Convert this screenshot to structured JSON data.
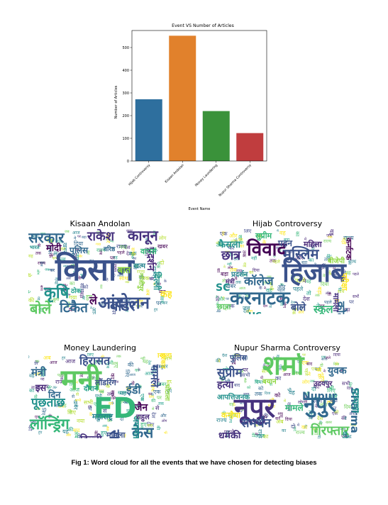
{
  "chart_data": {
    "type": "bar",
    "title": "Event VS Number of Articles",
    "xlabel": "Event Name",
    "ylabel": "Number of Articles",
    "categories": [
      "Hijab Controversy",
      "Kisaan Andolan",
      "Money Laundering",
      "Nupur Sharma Controversy"
    ],
    "values": [
      272,
      552,
      220,
      123
    ],
    "colors": [
      "#2e6f9e",
      "#e1812c",
      "#3a923a",
      "#c03d3e"
    ],
    "ylim": [
      0,
      575
    ],
    "yticks": [
      0,
      100,
      200,
      300,
      400,
      500
    ],
    "grid": false
  },
  "wordclouds": [
    {
      "title": "Kisaan Andolan",
      "words": [
        {
          "text": "किसान",
          "color": "#3b528b"
        },
        {
          "text": "आंदोलन",
          "color": "#3b528b"
        },
        {
          "text": "सरकार",
          "color": "#31688e"
        },
        {
          "text": "कानून",
          "color": "#46327e"
        },
        {
          "text": "राकेश",
          "color": "#46327e"
        },
        {
          "text": "कृषि",
          "color": "#21918c"
        },
        {
          "text": "टिकैत",
          "color": "#31688e"
        },
        {
          "text": "बॉर्डर",
          "color": "#3b528b"
        },
        {
          "text": "बोले",
          "color": "#5ec962"
        },
        {
          "text": "मोदी",
          "color": "#440154"
        },
        {
          "text": "पुलिस",
          "color": "#31688e"
        },
        {
          "text": "प्रदर्शन",
          "color": "#482878"
        },
        {
          "text": "वापस",
          "color": "#35b779"
        },
        {
          "text": "दिल्ली",
          "color": "#21918c"
        },
        {
          "text": "बात",
          "color": "#90d743"
        },
        {
          "text": "खत्म",
          "color": "#26828e"
        },
        {
          "text": "ले",
          "color": "#440154"
        },
        {
          "text": "कहा",
          "color": "#fde725"
        },
        {
          "text": "भाजपा",
          "color": "#35b779"
        },
        {
          "text": "भारत",
          "color": "#21918c"
        },
        {
          "text": "वरिष्ठ",
          "color": "#31688e"
        },
        {
          "text": "ठोक",
          "color": "#1f9e89"
        },
        {
          "text": "गाजीपुर",
          "color": "#90d743"
        }
      ]
    },
    {
      "title": "Hijab Controversy",
      "words": [
        {
          "text": "हिजाब",
          "color": "#3b528b"
        },
        {
          "text": "करनाटक",
          "color": "#31688e"
        },
        {
          "text": "विवाद",
          "color": "#440154"
        },
        {
          "text": "मुस्लिम",
          "color": "#3b528b"
        },
        {
          "text": "छात्र",
          "color": "#46327e"
        },
        {
          "text": "कॉलेज",
          "color": "#31688e"
        },
        {
          "text": "फैसला",
          "color": "#21918c"
        },
        {
          "text": "सुप्रीम",
          "color": "#35b779"
        },
        {
          "text": "पहन",
          "color": "#3b528b"
        },
        {
          "text": "महिला",
          "color": "#482878"
        },
        {
          "text": "SC",
          "color": "#21918c"
        },
        {
          "text": "HC",
          "color": "#21918c"
        },
        {
          "text": "बोले",
          "color": "#3b528b"
        },
        {
          "text": "स्कूल",
          "color": "#35b779"
        },
        {
          "text": "कोर्ट",
          "color": "#31688e"
        },
        {
          "text": "मामला",
          "color": "#46327e"
        },
        {
          "text": "छात्रा",
          "color": "#5ec962"
        },
        {
          "text": "परीक्षा",
          "color": "#fde725"
        },
        {
          "text": "बीजेपी",
          "color": "#90d743"
        },
        {
          "text": "कर्नाटक",
          "color": "#440154"
        },
        {
          "text": "प्रदर्शन",
          "color": "#26828e"
        },
        {
          "text": "मंत्री",
          "color": "#482878"
        }
      ]
    },
    {
      "title": "Money Laundering",
      "words": [
        {
          "text": "मनी",
          "color": "#5ec962"
        },
        {
          "text": "ED",
          "color": "#35b779"
        },
        {
          "text": "लॉन्ड्रिंग",
          "color": "#35b779"
        },
        {
          "text": "मंत्री",
          "color": "#31688e"
        },
        {
          "text": "हिरासत",
          "color": "#3b528b"
        },
        {
          "text": "पूछताछ",
          "color": "#21918c"
        },
        {
          "text": "ईडी",
          "color": "#31688e"
        },
        {
          "text": "मामले",
          "color": "#3b528b"
        },
        {
          "text": "सतेंद्र",
          "color": "#3b528b"
        },
        {
          "text": "जैन",
          "color": "#440154"
        },
        {
          "text": "केस",
          "color": "#31688e"
        },
        {
          "text": "दिल्ली",
          "color": "#46327e"
        },
        {
          "text": "जमानत",
          "color": "#21918c"
        },
        {
          "text": "जैकलीन",
          "color": "#90d743"
        },
        {
          "text": "महाराष्ट्र",
          "color": "#26828e"
        },
        {
          "text": "लॉडरिंग",
          "color": "#3b528b"
        },
        {
          "text": "मामला",
          "color": "#3b528b"
        },
        {
          "text": "राहुल",
          "color": "#482878"
        },
        {
          "text": "सरकार",
          "color": "#fde725"
        },
        {
          "text": "दौरान",
          "color": "#1f9e89"
        },
        {
          "text": "घोटाला",
          "color": "#90d743"
        },
        {
          "text": "खिलाफ",
          "color": "#fde725"
        },
        {
          "text": "इस",
          "color": "#482878"
        },
        {
          "text": "दिन",
          "color": "#31688e"
        }
      ]
    },
    {
      "title": "Nupur Sharma Controversy",
      "words": [
        {
          "text": "शर्मा",
          "color": "#5ec962"
        },
        {
          "text": "नूपुर",
          "color": "#46327e"
        },
        {
          "text": "नुपुर",
          "color": "#31688e"
        },
        {
          "text": "सुप्रीम",
          "color": "#3b528b"
        },
        {
          "text": "हत्या",
          "color": "#46327e"
        },
        {
          "text": "आपत्तिजनक",
          "color": "#21918c"
        },
        {
          "text": "Nupur",
          "color": "#31688e"
        },
        {
          "text": "Sharma",
          "color": "#31688e"
        },
        {
          "text": "समर्थन",
          "color": "#3b528b"
        },
        {
          "text": "धमकी",
          "color": "#46327e"
        },
        {
          "text": "गिरफ्तार",
          "color": "#5ec962"
        },
        {
          "text": "पैगंबर",
          "color": "#31688e"
        },
        {
          "text": "बीजेपी",
          "color": "#440154"
        },
        {
          "text": "युवक",
          "color": "#31688e"
        },
        {
          "text": "टिप्पणी",
          "color": "#21918c"
        },
        {
          "text": "मामले",
          "color": "#35b779"
        },
        {
          "text": "पुलिस",
          "color": "#3b528b"
        },
        {
          "text": "कोर्ट",
          "color": "#21918c"
        },
        {
          "text": "बयान",
          "color": "#90d743"
        },
        {
          "text": "कन्हैया",
          "color": "#fde725"
        },
        {
          "text": "उदयपुर",
          "color": "#482878"
        }
      ]
    }
  ],
  "caption": "Fig 1: Word cloud for all the events that we have chosen for detecting biases"
}
